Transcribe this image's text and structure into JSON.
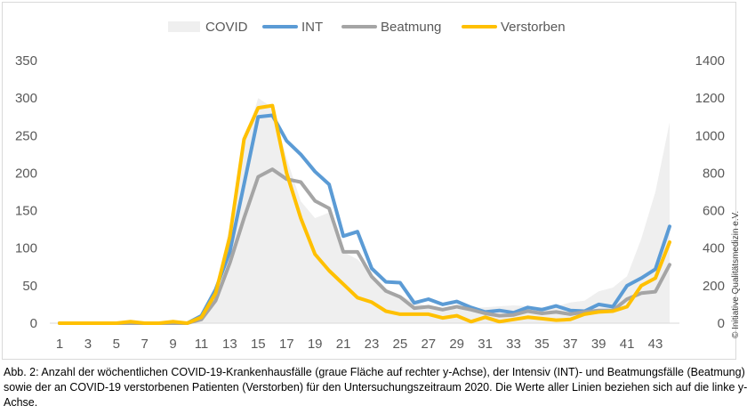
{
  "chart_data": {
    "type": "line",
    "x": [
      1,
      2,
      3,
      4,
      5,
      6,
      7,
      8,
      9,
      10,
      11,
      12,
      13,
      14,
      15,
      16,
      17,
      18,
      19,
      20,
      21,
      22,
      23,
      24,
      25,
      26,
      27,
      28,
      29,
      30,
      31,
      32,
      33,
      34,
      35,
      36,
      37,
      38,
      39,
      40,
      41,
      42,
      43,
      44
    ],
    "x_ticks": [
      1,
      3,
      5,
      7,
      9,
      11,
      13,
      15,
      17,
      19,
      21,
      23,
      25,
      27,
      29,
      31,
      33,
      35,
      37,
      39,
      41,
      43
    ],
    "y_left": {
      "ticks": [
        0,
        50,
        100,
        150,
        200,
        250,
        300,
        350
      ],
      "ylim": [
        0,
        350
      ]
    },
    "y_right": {
      "ticks": [
        0,
        200,
        400,
        600,
        800,
        1000,
        1200,
        1400
      ],
      "ylim": [
        0,
        1400
      ]
    },
    "legend_position": "top",
    "series": [
      {
        "name": "COVID",
        "type": "area",
        "axis": "right",
        "color": "#efefef",
        "values": [
          0,
          0,
          0,
          0,
          0,
          0,
          0,
          0,
          0,
          0,
          40,
          180,
          520,
          950,
          1200,
          1150,
          880,
          650,
          560,
          590,
          380,
          340,
          260,
          180,
          150,
          110,
          90,
          75,
          75,
          80,
          85,
          90,
          95,
          90,
          85,
          90,
          110,
          120,
          170,
          190,
          250,
          450,
          700,
          1070
        ]
      },
      {
        "name": "INT",
        "type": "line",
        "axis": "left",
        "color": "#5b9bd5",
        "values": [
          0,
          0,
          0,
          0,
          0,
          0,
          0,
          0,
          0,
          0,
          10,
          45,
          95,
          185,
          275,
          277,
          243,
          225,
          202,
          185,
          116,
          122,
          73,
          55,
          54,
          27,
          32,
          25,
          29,
          21,
          15,
          17,
          14,
          21,
          18,
          23,
          17,
          16,
          25,
          22,
          50,
          60,
          72,
          129
        ]
      },
      {
        "name": "Beatmung",
        "type": "line",
        "axis": "left",
        "color": "#a5a5a5",
        "values": [
          0,
          0,
          0,
          0,
          0,
          0,
          0,
          0,
          0,
          0,
          5,
          30,
          80,
          140,
          195,
          205,
          192,
          188,
          163,
          153,
          95,
          95,
          62,
          43,
          35,
          20,
          22,
          18,
          22,
          18,
          13,
          10,
          11,
          16,
          13,
          15,
          12,
          15,
          17,
          17,
          32,
          40,
          42,
          78
        ]
      },
      {
        "name": "Verstorben",
        "type": "line",
        "axis": "left",
        "color": "#ffc000",
        "values": [
          0,
          0,
          0,
          0,
          0,
          2,
          0,
          0,
          2,
          0,
          8,
          40,
          115,
          245,
          287,
          290,
          200,
          140,
          92,
          70,
          52,
          34,
          28,
          16,
          12,
          12,
          12,
          7,
          10,
          2,
          8,
          2,
          5,
          8,
          6,
          4,
          5,
          12,
          15,
          16,
          22,
          50,
          60,
          108
        ]
      }
    ]
  },
  "caption": "Abb. 2: Anzahl der wöchentlichen COVID-19-Krankenhausfälle (graue Fläche auf rechter y-Achse), der Intensiv (INT)- und Beatmungsfälle (Beatmung) sowie der an COVID-19 verstorbenen Patienten (Verstorben) für den Untersuchungszeitraum 2020. Die Werte aller Linien beziehen sich auf die linke y-Achse.",
  "copyright": "© Initiative Qualitätsmedizin e.V."
}
